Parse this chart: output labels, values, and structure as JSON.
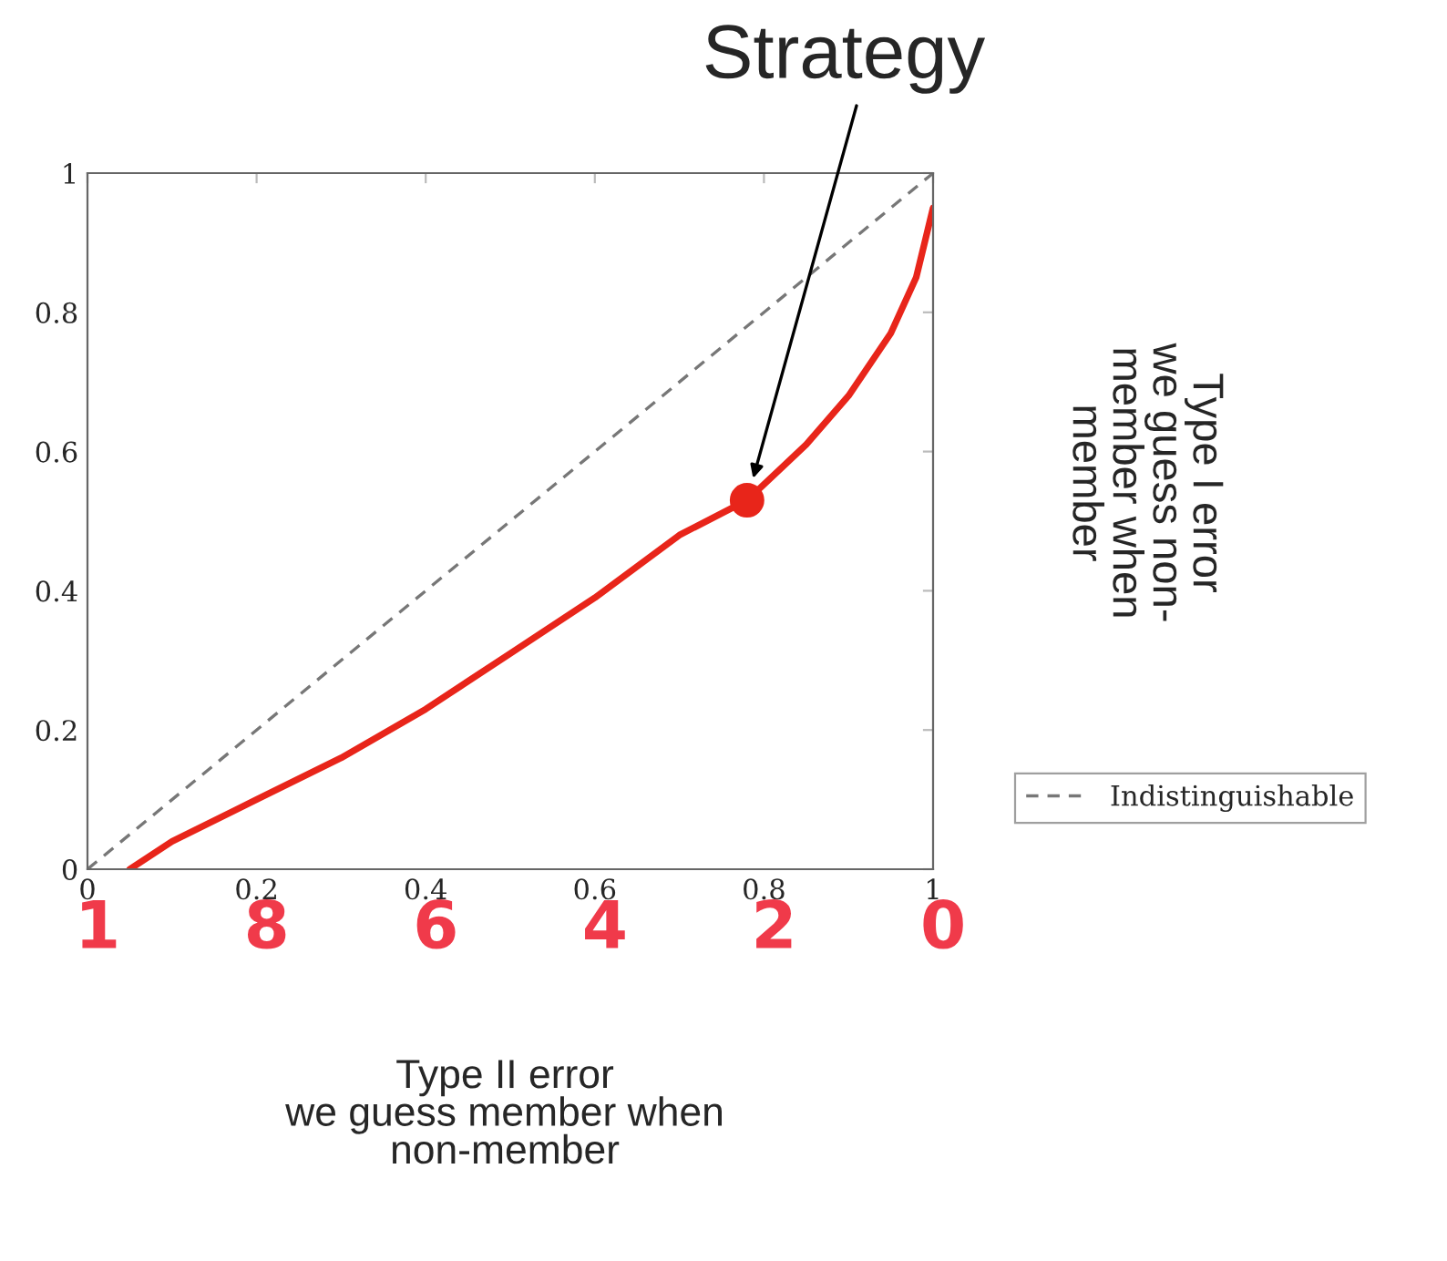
{
  "chart_data": {
    "type": "line",
    "xlabel": "Type II error\nwe guess member when\nnon-member",
    "ylabel": "Type I error\nwe guess non-\nmember when\nmember",
    "xlim": [
      0,
      1
    ],
    "ylim": [
      0,
      1
    ],
    "xticks": [
      0,
      0.2,
      0.4,
      0.6,
      0.8,
      1
    ],
    "yticks": [
      0,
      0.2,
      0.4,
      0.6,
      0.8,
      1
    ],
    "grid": false,
    "legend": "right",
    "marker": "none",
    "series": [
      {
        "name": "Indistinguishable",
        "color": "#777777",
        "line_style": "dashed",
        "x": [
          0,
          1
        ],
        "values": [
          0,
          1
        ]
      },
      {
        "color": "#e8251a",
        "line_style": "solid",
        "x": [
          0.05,
          0.1,
          0.2,
          0.3,
          0.4,
          0.5,
          0.6,
          0.7,
          0.78,
          0.85,
          0.9,
          0.95,
          0.98,
          1.0
        ],
        "values": [
          0.0,
          0.04,
          0.1,
          0.16,
          0.23,
          0.31,
          0.39,
          0.48,
          0.53,
          0.61,
          0.68,
          0.77,
          0.85,
          0.95
        ]
      },
      {
        "type": "scatter",
        "marker": "circle",
        "color": "#e8251a",
        "x": [
          0.78
        ],
        "values": [
          0.53
        ]
      }
    ],
    "annotations": [
      "Strategy",
      "1",
      "8",
      "6",
      "4",
      "2",
      "0"
    ]
  }
}
